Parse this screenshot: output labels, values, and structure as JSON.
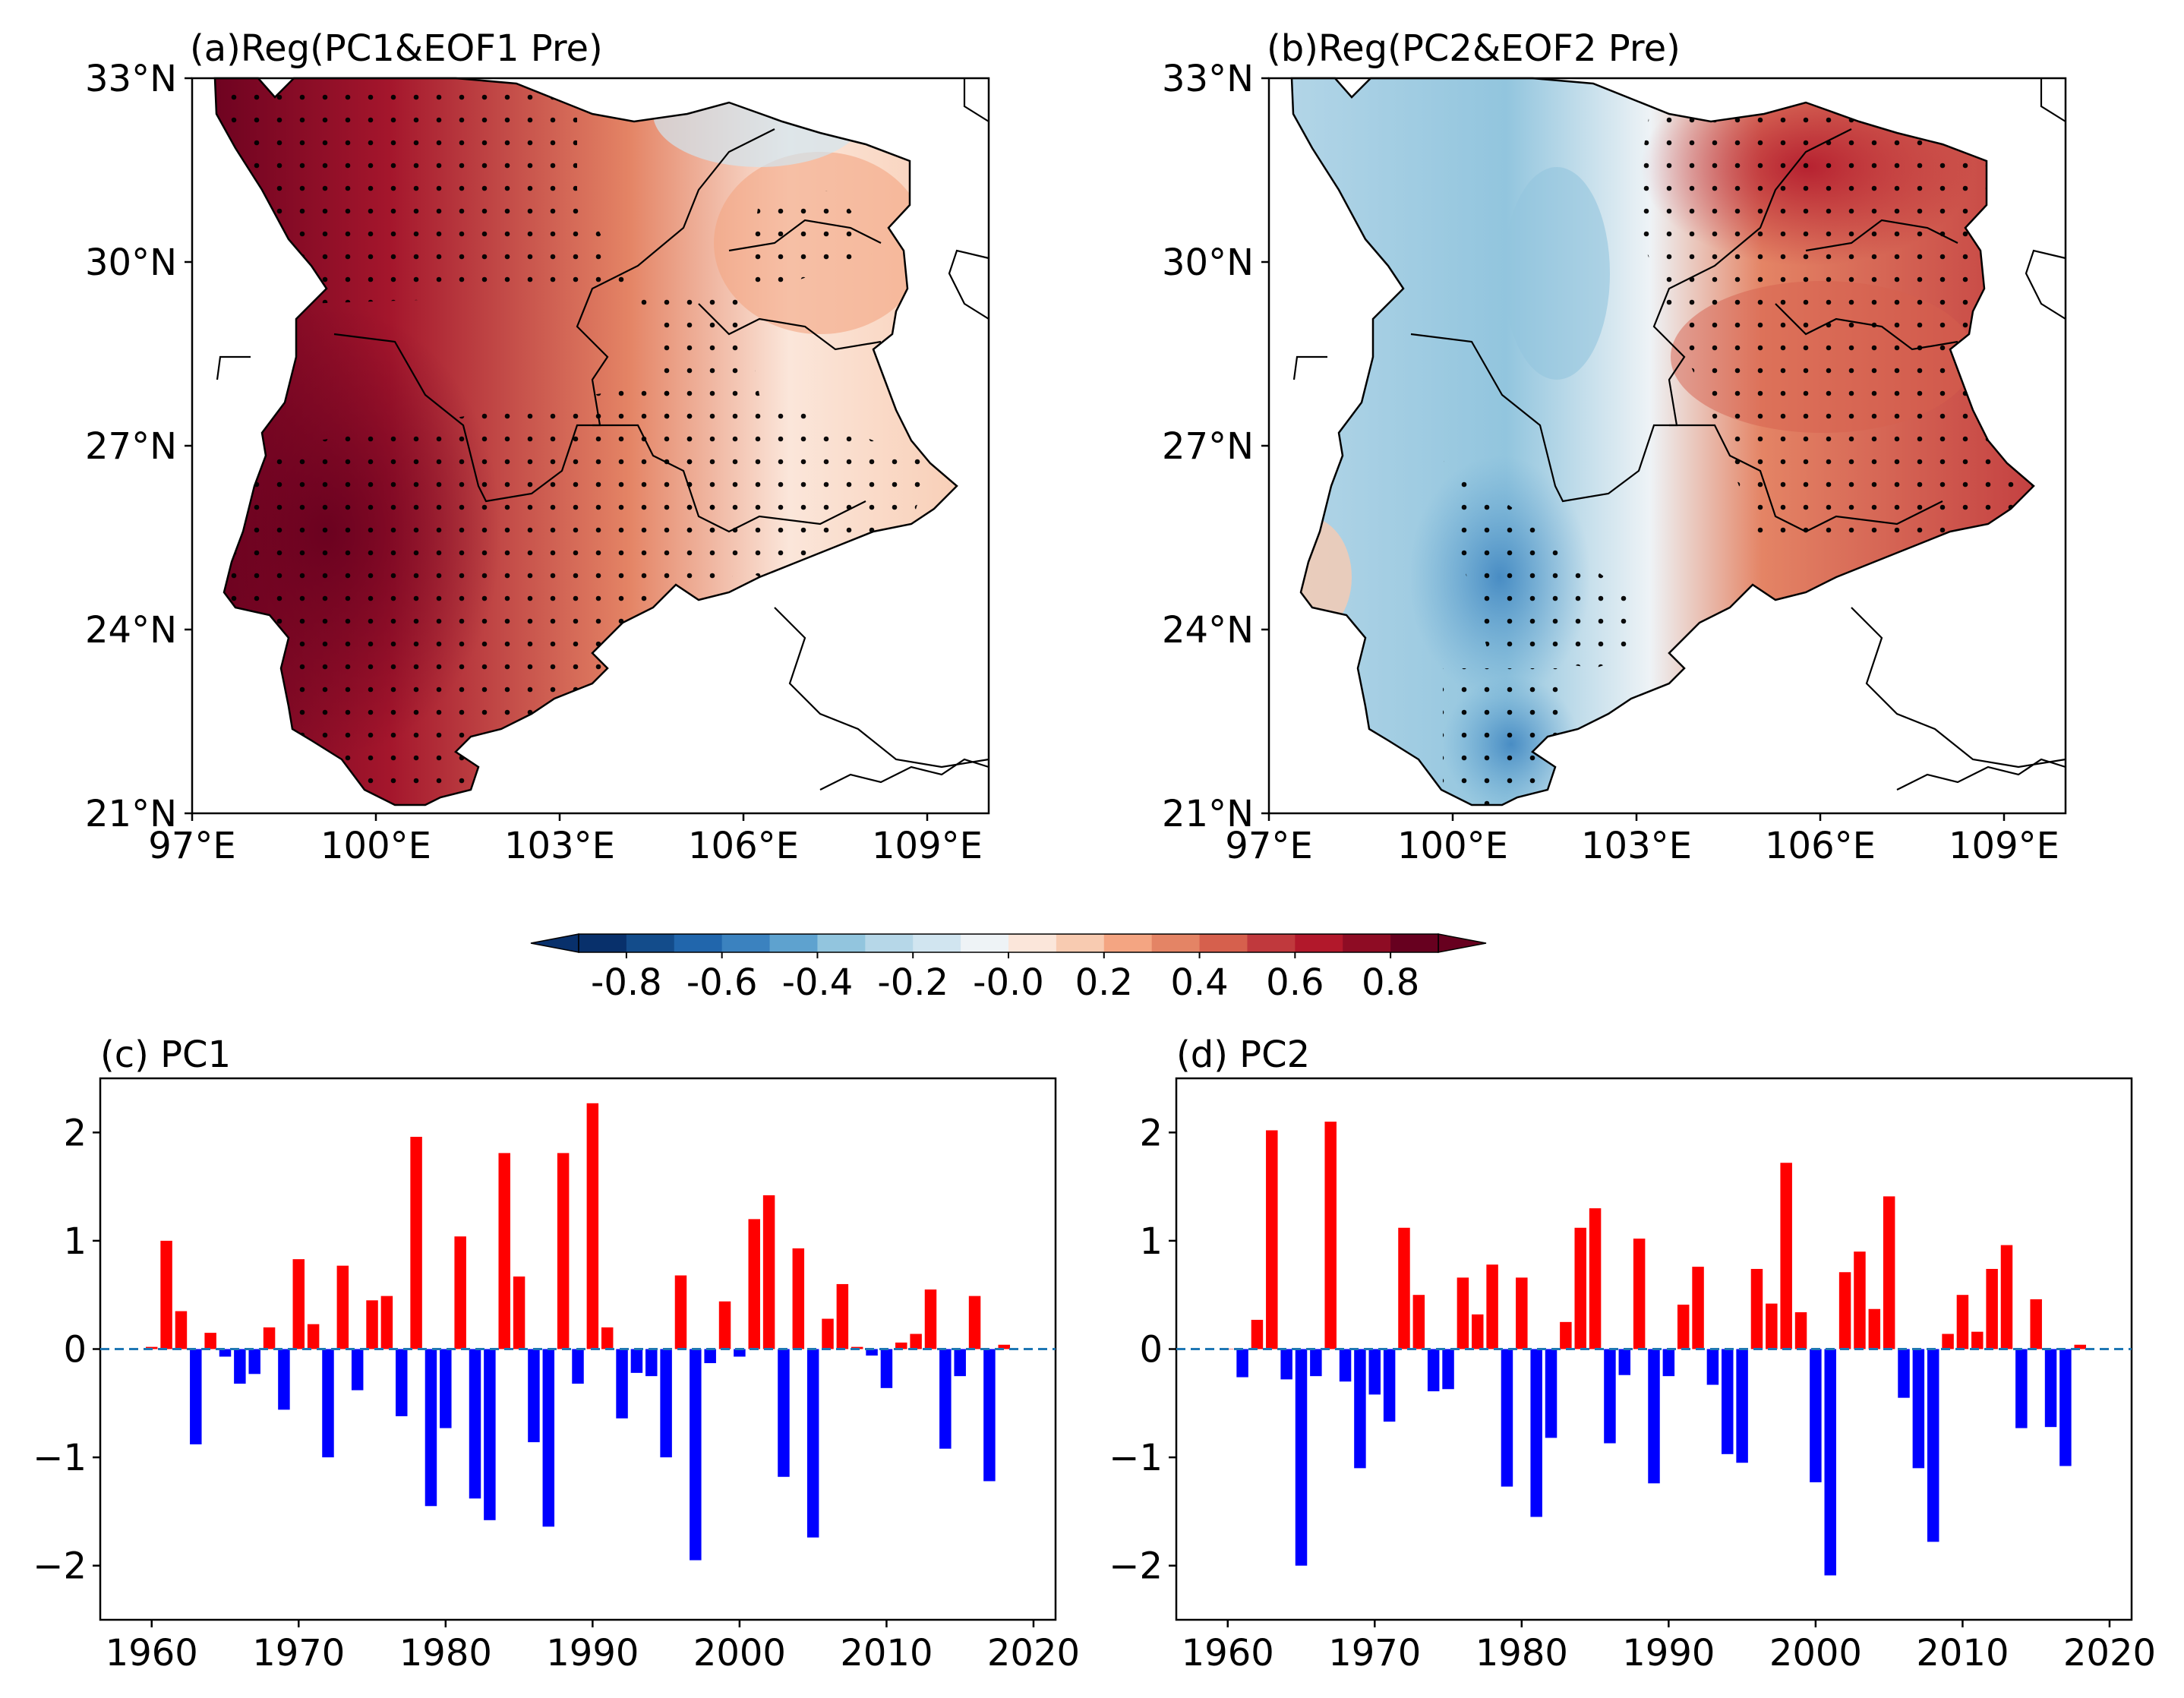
{
  "maps": [
    {
      "title": "(a)Reg(PC1&EOF1 Pre)",
      "lat_ticks": [
        "33°N",
        "30°N",
        "27°N",
        "24°N",
        "21°N"
      ],
      "lon_ticks": [
        "97°E",
        "100°E",
        "103°E",
        "106°E",
        "109°E"
      ],
      "pattern": "west-positive"
    },
    {
      "title": "(b)Reg(PC2&EOF2 Pre)",
      "lat_ticks": [
        "33°N",
        "30°N",
        "27°N",
        "24°N",
        "21°N"
      ],
      "lon_ticks": [
        "97°E",
        "100°E",
        "103°E",
        "106°E",
        "109°E"
      ],
      "pattern": "west-negative-east-positive"
    }
  ],
  "colorbar": {
    "labels": [
      "-0.8",
      "-0.6",
      "-0.4",
      "-0.2",
      "-0.0",
      "0.2",
      "0.4",
      "0.6",
      "0.8"
    ],
    "colors": [
      "#08306b",
      "#134c8b",
      "#2166ac",
      "#3b82bf",
      "#5ea2cf",
      "#92c5de",
      "#b6d7e8",
      "#d1e5f0",
      "#eef3f6",
      "#fbe6da",
      "#f8cbb1",
      "#f4a582",
      "#e48465",
      "#d6604d",
      "#c0393d",
      "#b2182b",
      "#8e0c24",
      "#67001f"
    ]
  },
  "chart_data": [
    {
      "type": "bar",
      "title": "(c) PC1",
      "xlabel": "",
      "ylabel": "",
      "xlim": [
        1956.5,
        2021.5
      ],
      "ylim": [
        -2.5,
        2.5
      ],
      "xticks": [
        1960,
        1970,
        1980,
        1990,
        2000,
        2010,
        2020
      ],
      "yticks": [
        2,
        1,
        0,
        -1,
        -2
      ],
      "ytick_labels": [
        "2",
        "1",
        "0",
        "−1",
        "−2"
      ],
      "positive_color": "#ff0000",
      "negative_color": "#0000ff",
      "zero_line": "dashed",
      "x": [
        1960,
        1961,
        1962,
        1963,
        1964,
        1965,
        1966,
        1967,
        1968,
        1969,
        1970,
        1971,
        1972,
        1973,
        1974,
        1975,
        1976,
        1977,
        1978,
        1979,
        1980,
        1981,
        1982,
        1983,
        1984,
        1985,
        1986,
        1987,
        1988,
        1989,
        1990,
        1991,
        1992,
        1993,
        1994,
        1995,
        1996,
        1997,
        1998,
        1999,
        2000,
        2001,
        2002,
        2003,
        2004,
        2005,
        2006,
        2007,
        2008,
        2009,
        2010,
        2011,
        2012,
        2013,
        2014,
        2015,
        2016,
        2017,
        2018
      ],
      "values": [
        0.02,
        1.0,
        0.35,
        -0.88,
        0.15,
        -0.07,
        -0.32,
        -0.23,
        0.2,
        -0.56,
        0.83,
        0.23,
        -1.0,
        0.77,
        -0.38,
        0.45,
        0.49,
        -0.62,
        1.96,
        -1.45,
        -0.73,
        1.04,
        -1.38,
        -1.58,
        1.81,
        0.67,
        -0.86,
        -1.64,
        1.81,
        -0.32,
        2.27,
        0.2,
        -0.64,
        -0.22,
        -0.25,
        -1.0,
        0.68,
        -1.95,
        -0.13,
        0.44,
        -0.07,
        1.2,
        1.42,
        -1.18,
        0.93,
        -1.74,
        0.28,
        0.6,
        0.02,
        -0.06,
        -0.36,
        0.06,
        0.14,
        0.55,
        -0.92,
        -0.25,
        0.49,
        -1.22,
        0.04
      ]
    },
    {
      "type": "bar",
      "title": "(d) PC2",
      "xlabel": "",
      "ylabel": "",
      "xlim": [
        1956.5,
        2021.5
      ],
      "ylim": [
        -2.5,
        2.5
      ],
      "xticks": [
        1960,
        1970,
        1980,
        1990,
        2000,
        2010,
        2020
      ],
      "yticks": [
        2,
        1,
        0,
        -1,
        -2
      ],
      "ytick_labels": [
        "2",
        "1",
        "0",
        "−1",
        "−2"
      ],
      "positive_color": "#ff0000",
      "negative_color": "#0000ff",
      "zero_line": "dashed",
      "x": [
        1960,
        1961,
        1962,
        1963,
        1964,
        1965,
        1966,
        1967,
        1968,
        1969,
        1970,
        1971,
        1972,
        1973,
        1974,
        1975,
        1976,
        1977,
        1978,
        1979,
        1980,
        1981,
        1982,
        1983,
        1984,
        1985,
        1986,
        1987,
        1988,
        1989,
        1990,
        1991,
        1992,
        1993,
        1994,
        1995,
        1996,
        1997,
        1998,
        1999,
        2000,
        2001,
        2002,
        2003,
        2004,
        2005,
        2006,
        2007,
        2008,
        2009,
        2010,
        2011,
        2012,
        2013,
        2014,
        2015,
        2016,
        2017,
        2018
      ],
      "values": [
        0.0,
        -0.26,
        0.27,
        2.02,
        -0.28,
        -2.0,
        -0.25,
        2.1,
        -0.3,
        -1.1,
        -0.42,
        -0.67,
        1.12,
        0.5,
        -0.39,
        -0.37,
        0.66,
        0.32,
        0.78,
        -1.27,
        0.66,
        -1.55,
        -0.82,
        0.25,
        1.12,
        1.3,
        -0.87,
        -0.24,
        1.02,
        -1.24,
        -0.25,
        0.41,
        0.76,
        -0.33,
        -0.97,
        -1.05,
        0.74,
        0.42,
        1.72,
        0.34,
        -1.23,
        -2.09,
        0.71,
        0.9,
        0.37,
        1.41,
        -0.45,
        -1.1,
        -1.78,
        0.14,
        0.5,
        0.16,
        0.74,
        0.96,
        -0.73,
        0.46,
        -0.72,
        -1.08,
        0.04
      ]
    }
  ]
}
